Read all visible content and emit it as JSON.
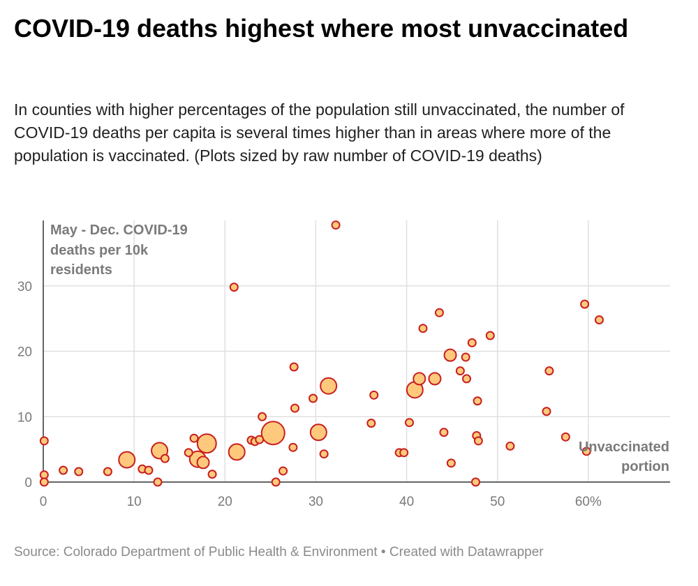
{
  "title": "COVID-19 deaths highest where most unvaccinated",
  "subtitle": "In counties with higher percentages of the population still unvaccinated, the number of COVID-19 deaths per capita is several times higher than in areas where more of the population is vaccinated. (Plots sized by raw number of COVID-19 deaths)",
  "footer": {
    "source": "Source: Colorado Department of Public Health & Environment",
    "separator": " • ",
    "credit": "Created with Datawrapper"
  },
  "colors": {
    "fill": "#fec97c",
    "stroke": "#c81e1e",
    "grid": "#e0e0e0",
    "axis": "#333333",
    "muted_text": "#7a7a7a"
  },
  "chart_data": {
    "type": "scatter",
    "title": "COVID-19 deaths highest where most unvaccinated",
    "ylabel_annotation": [
      "May - Dec. COVID-19",
      "deaths per 10k",
      "residents"
    ],
    "xlabel_annotation": [
      "Unvaccinated",
      "portion"
    ],
    "xlim": [
      0,
      69
    ],
    "ylim": [
      0,
      40
    ],
    "x_ticks": [
      0,
      10,
      20,
      30,
      40,
      50,
      60
    ],
    "x_tick_labels": [
      "0",
      "10",
      "20",
      "30",
      "40",
      "50",
      "60%"
    ],
    "y_ticks": [
      0,
      10,
      20,
      30
    ],
    "y_tick_labels": [
      "0",
      "10",
      "20",
      "30"
    ],
    "grid": true,
    "size_encoding": "raw number of COVID-19 deaths",
    "points": [
      {
        "x": 0.1,
        "y": 6.3,
        "size": "small"
      },
      {
        "x": 0.1,
        "y": 1.1,
        "size": "small"
      },
      {
        "x": 0.1,
        "y": 0.0,
        "size": "small"
      },
      {
        "x": 2.2,
        "y": 1.8,
        "size": "small"
      },
      {
        "x": 3.9,
        "y": 1.6,
        "size": "small"
      },
      {
        "x": 7.1,
        "y": 1.6,
        "size": "small"
      },
      {
        "x": 9.2,
        "y": 3.4,
        "size": "large"
      },
      {
        "x": 10.9,
        "y": 2.0,
        "size": "small"
      },
      {
        "x": 11.6,
        "y": 1.8,
        "size": "small"
      },
      {
        "x": 12.6,
        "y": 0.0,
        "size": "small"
      },
      {
        "x": 12.8,
        "y": 4.8,
        "size": "large"
      },
      {
        "x": 13.4,
        "y": 3.6,
        "size": "small"
      },
      {
        "x": 16.0,
        "y": 4.5,
        "size": "small"
      },
      {
        "x": 16.6,
        "y": 6.7,
        "size": "small"
      },
      {
        "x": 17.0,
        "y": 3.5,
        "size": "large"
      },
      {
        "x": 17.6,
        "y": 3.0,
        "size": "medium"
      },
      {
        "x": 18.0,
        "y": 5.9,
        "size": "xlarge"
      },
      {
        "x": 18.6,
        "y": 1.2,
        "size": "small"
      },
      {
        "x": 21.0,
        "y": 29.8,
        "size": "small"
      },
      {
        "x": 21.3,
        "y": 4.6,
        "size": "large"
      },
      {
        "x": 22.9,
        "y": 6.4,
        "size": "small"
      },
      {
        "x": 23.3,
        "y": 6.2,
        "size": "small"
      },
      {
        "x": 23.8,
        "y": 6.5,
        "size": "small"
      },
      {
        "x": 24.1,
        "y": 10.0,
        "size": "small"
      },
      {
        "x": 25.3,
        "y": 7.5,
        "size": "xxlarge"
      },
      {
        "x": 25.6,
        "y": 0.0,
        "size": "small"
      },
      {
        "x": 26.4,
        "y": 1.7,
        "size": "small"
      },
      {
        "x": 27.5,
        "y": 5.3,
        "size": "small"
      },
      {
        "x": 27.6,
        "y": 17.6,
        "size": "small"
      },
      {
        "x": 27.7,
        "y": 11.3,
        "size": "small"
      },
      {
        "x": 29.7,
        "y": 12.8,
        "size": "small"
      },
      {
        "x": 30.3,
        "y": 7.6,
        "size": "large"
      },
      {
        "x": 30.9,
        "y": 4.3,
        "size": "small"
      },
      {
        "x": 31.4,
        "y": 14.7,
        "size": "large"
      },
      {
        "x": 32.2,
        "y": 39.3,
        "size": "small"
      },
      {
        "x": 36.1,
        "y": 9.0,
        "size": "small"
      },
      {
        "x": 36.4,
        "y": 13.3,
        "size": "small"
      },
      {
        "x": 39.2,
        "y": 4.5,
        "size": "small"
      },
      {
        "x": 39.7,
        "y": 4.5,
        "size": "small"
      },
      {
        "x": 40.3,
        "y": 9.1,
        "size": "small"
      },
      {
        "x": 40.9,
        "y": 14.1,
        "size": "large"
      },
      {
        "x": 41.4,
        "y": 15.8,
        "size": "medium"
      },
      {
        "x": 41.8,
        "y": 23.5,
        "size": "small"
      },
      {
        "x": 43.1,
        "y": 15.8,
        "size": "medium"
      },
      {
        "x": 43.6,
        "y": 25.9,
        "size": "small"
      },
      {
        "x": 44.1,
        "y": 7.6,
        "size": "small"
      },
      {
        "x": 44.8,
        "y": 19.4,
        "size": "medium"
      },
      {
        "x": 44.9,
        "y": 2.9,
        "size": "small"
      },
      {
        "x": 45.9,
        "y": 17.0,
        "size": "small"
      },
      {
        "x": 46.5,
        "y": 19.1,
        "size": "small"
      },
      {
        "x": 46.6,
        "y": 15.8,
        "size": "small"
      },
      {
        "x": 47.2,
        "y": 21.3,
        "size": "small"
      },
      {
        "x": 47.6,
        "y": 0.0,
        "size": "small"
      },
      {
        "x": 47.7,
        "y": 7.1,
        "size": "small"
      },
      {
        "x": 47.8,
        "y": 12.4,
        "size": "small"
      },
      {
        "x": 47.9,
        "y": 6.3,
        "size": "small"
      },
      {
        "x": 49.2,
        "y": 22.4,
        "size": "small"
      },
      {
        "x": 51.4,
        "y": 5.5,
        "size": "small"
      },
      {
        "x": 55.4,
        "y": 10.8,
        "size": "small"
      },
      {
        "x": 55.7,
        "y": 17.0,
        "size": "small"
      },
      {
        "x": 57.5,
        "y": 6.9,
        "size": "small"
      },
      {
        "x": 59.6,
        "y": 27.2,
        "size": "small"
      },
      {
        "x": 59.8,
        "y": 4.7,
        "size": "small"
      },
      {
        "x": 61.2,
        "y": 24.8,
        "size": "small"
      }
    ]
  }
}
